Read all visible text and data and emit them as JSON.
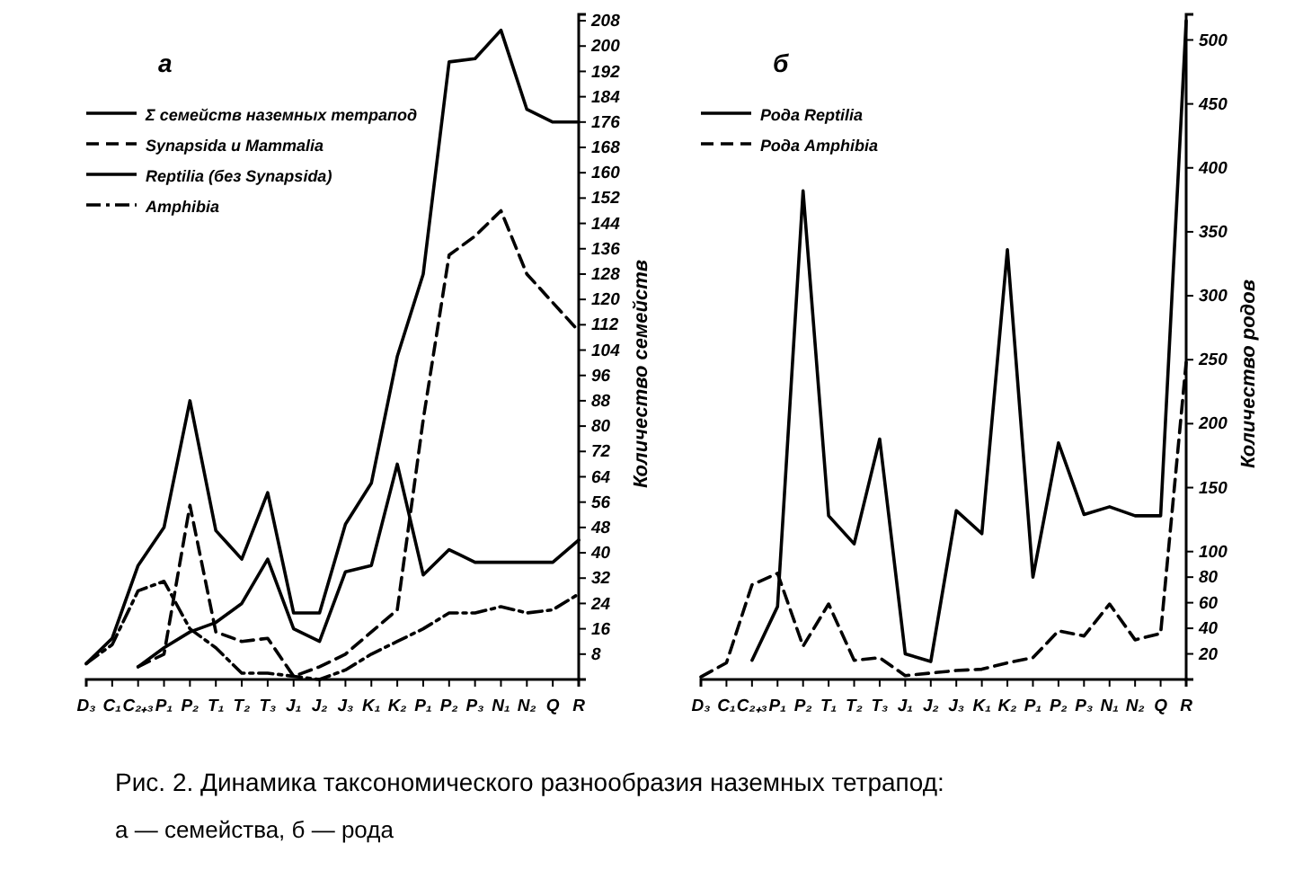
{
  "chart_data": [
    {
      "type": "line",
      "title": "а",
      "ylabel": "Количество семейств",
      "categories": [
        "D₃",
        "C₁",
        "C₂₊₃",
        "P₁",
        "P₂",
        "T₁",
        "T₂",
        "T₃",
        "J₁",
        "J₂",
        "J₃",
        "K₁",
        "K₂",
        "P₁",
        "P₂",
        "P₃",
        "N₁",
        "N₂",
        "Q",
        "R"
      ],
      "series": [
        {
          "name": "Σ семейств наземных тетрапод",
          "color": "#000000",
          "line_style": "solid",
          "values": [
            5,
            13,
            36,
            48,
            88,
            47,
            38,
            59,
            21,
            21,
            49,
            62,
            102,
            128,
            195,
            196,
            205,
            180,
            176,
            176
          ]
        },
        {
          "name": "Synapsida и Mammalia",
          "color": "#000000",
          "line_style": "dashed",
          "values": [
            null,
            null,
            4,
            8,
            55,
            15,
            12,
            13,
            1,
            4,
            8,
            15,
            22,
            82,
            134,
            140,
            148,
            128,
            119,
            110
          ]
        },
        {
          "name": "Reptilia (без Synapsida)",
          "color": "#000000",
          "line_style": "solid",
          "values": [
            null,
            null,
            4,
            10,
            15,
            18,
            24,
            38,
            16,
            12,
            34,
            36,
            68,
            33,
            41,
            37,
            37,
            37,
            37,
            44
          ]
        },
        {
          "name": "Amphibia",
          "color": "#000000",
          "line_style": "dashdot",
          "values": [
            5,
            11,
            28,
            31,
            16,
            10,
            2,
            2,
            1,
            0,
            3,
            8,
            12,
            16,
            21,
            21,
            23,
            21,
            22,
            27
          ]
        }
      ],
      "ylim": [
        0,
        210
      ],
      "yticks": [
        8,
        16,
        24,
        32,
        40,
        48,
        56,
        64,
        72,
        80,
        88,
        96,
        104,
        112,
        120,
        128,
        136,
        144,
        152,
        160,
        168,
        176,
        184,
        192,
        200,
        208
      ],
      "grid": false,
      "legend": "top left",
      "annotations": [
        "Рис. 2. Динамика таксономического разнообразия наземных тетрапод:",
        "а — семейства,  б — рода"
      ]
    },
    {
      "type": "line",
      "title": "б",
      "ylabel": "Количество родов",
      "categories": [
        "D₃",
        "C₁",
        "C₂₊₃",
        "P₁",
        "P₂",
        "T₁",
        "T₂",
        "T₃",
        "J₁",
        "J₂",
        "J₃",
        "K₁",
        "K₂",
        "P₁",
        "P₂",
        "P₃",
        "N₁",
        "N₂",
        "Q",
        "R"
      ],
      "series": [
        {
          "name": "Рода Reptilia",
          "color": "#000000",
          "line_style": "solid",
          "values": [
            null,
            null,
            15,
            57,
            382,
            128,
            106,
            188,
            20,
            14,
            132,
            114,
            336,
            80,
            185,
            129,
            135,
            128,
            128,
            515
          ]
        },
        {
          "name": "Рода Amphibia",
          "color": "#000000",
          "line_style": "dashed",
          "values": [
            2,
            13,
            74,
            83,
            26,
            59,
            15,
            17,
            3,
            5,
            7,
            8,
            13,
            17,
            38,
            34,
            59,
            31,
            36,
            248
          ]
        }
      ],
      "ylim": [
        0,
        520
      ],
      "yticks": [
        20,
        40,
        60,
        80,
        100,
        150,
        200,
        250,
        300,
        350,
        400,
        450,
        500
      ],
      "grid": false,
      "legend": "top left"
    }
  ]
}
